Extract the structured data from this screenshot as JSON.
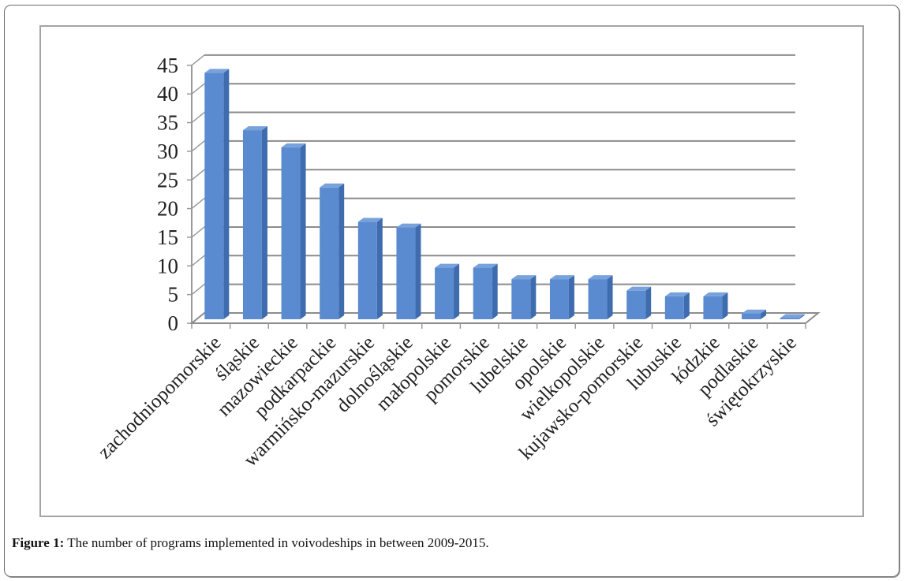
{
  "figure": {
    "caption_label": "Figure 1:",
    "caption_text": " The number of programs implemented in voivodeships in between 2009-2015."
  },
  "colors": {
    "bar_front": "#5a8acf",
    "bar_side": "#3e6cae",
    "bar_top": "#78a2dc",
    "gridline": "#8c8c8c",
    "axis": "#9a9a9a"
  },
  "chart_data": {
    "type": "bar",
    "style": "3d-column",
    "title": "",
    "xlabel": "",
    "ylabel": "",
    "ylim": [
      0,
      45
    ],
    "yticks": [
      0,
      5,
      10,
      15,
      20,
      25,
      30,
      35,
      40,
      45
    ],
    "grid": true,
    "legend": "none",
    "categories": [
      "zachodniopomorskie",
      "śląskie",
      "mazowieckie",
      "podkarpackie",
      "warmińsko-mazurskie",
      "dolnośląskie",
      "małopolskie",
      "pomorskie",
      "lubelskie",
      "opolskie",
      "wielkopolskie",
      "kujawsko-pomorskie",
      "lubuskie",
      "łódzkie",
      "podlaskie",
      "świętokrzyskie"
    ],
    "values": [
      43,
      33,
      30,
      23,
      17,
      16,
      9,
      9,
      7,
      7,
      7,
      5,
      4,
      4,
      1,
      0
    ]
  }
}
